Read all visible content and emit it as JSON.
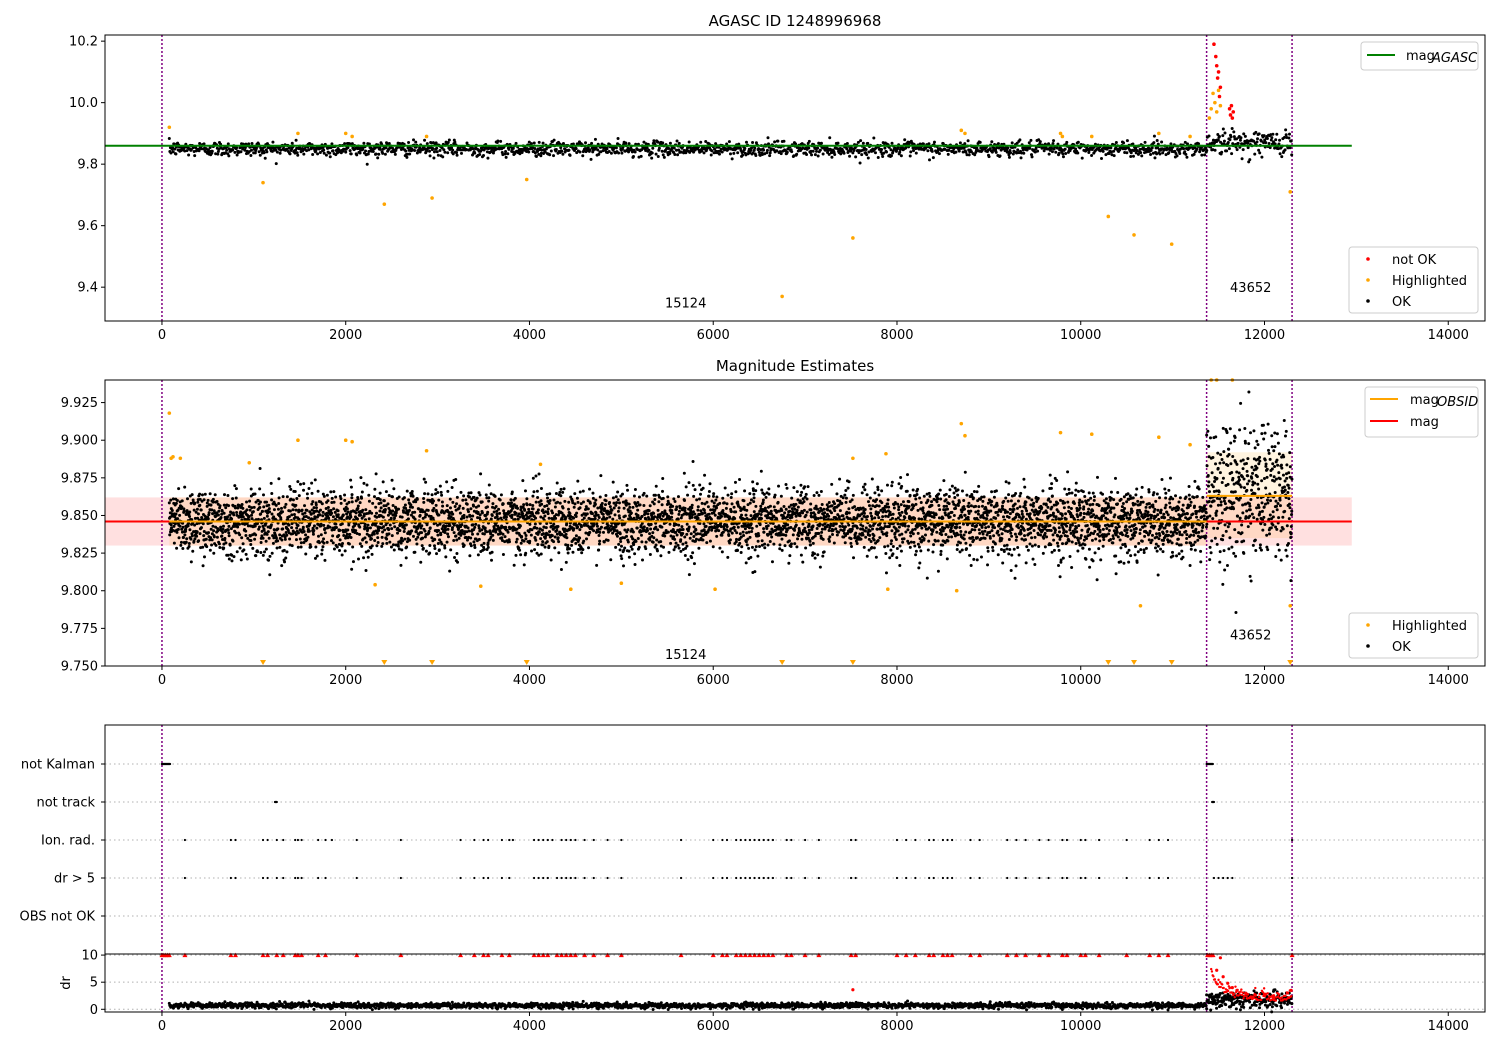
{
  "chart_data": [
    {
      "type": "scatter",
      "title": "AGASC ID 1248996968",
      "xlim": [
        -620,
        14400
      ],
      "ylim": [
        9.29,
        10.22
      ],
      "x_ticks": [
        0,
        2000,
        4000,
        6000,
        8000,
        10000,
        12000,
        14000
      ],
      "x_tick_labels": [
        "0",
        "2000",
        "4000",
        "6000",
        "8000",
        "10000",
        "12000",
        "14000"
      ],
      "y_ticks": [
        9.4,
        9.6,
        9.8,
        10.0,
        10.2
      ],
      "y_tick_labels": [
        "9.4",
        "9.6",
        "9.8",
        "10.0",
        "10.2"
      ],
      "obs_boundaries": [
        0,
        11370,
        12300
      ],
      "obs_labels": [
        {
          "text": "15124",
          "x": 5700,
          "y": 9.35
        },
        {
          "text": "43652",
          "x": 11850,
          "y": 9.4
        }
      ],
      "reference_line": {
        "name": "mag",
        "subscript": "AGASC",
        "y": 9.86,
        "x_range": [
          -620,
          12950
        ],
        "color": "#008000"
      },
      "series": [
        {
          "name": "not OK",
          "color": "#ff0000",
          "points": [
            [
              11450,
              10.19
            ],
            [
              11470,
              10.15
            ],
            [
              11480,
              10.12
            ],
            [
              11490,
              10.08
            ],
            [
              11500,
              10.1
            ],
            [
              11510,
              10.02
            ],
            [
              11520,
              10.05
            ],
            [
              11620,
              9.98
            ],
            [
              11630,
              9.96
            ],
            [
              11640,
              9.99
            ],
            [
              11650,
              9.95
            ],
            [
              11660,
              9.97
            ]
          ]
        },
        {
          "name": "Highlighted",
          "color": "#ffa500",
          "points": [
            [
              80,
              9.92
            ],
            [
              1100,
              9.74
            ],
            [
              2420,
              9.67
            ],
            [
              2940,
              9.69
            ],
            [
              3970,
              9.75
            ],
            [
              6750,
              9.37
            ],
            [
              7520,
              9.56
            ],
            [
              10300,
              9.63
            ],
            [
              10580,
              9.57
            ],
            [
              10990,
              9.54
            ],
            [
              11400,
              9.95
            ],
            [
              11420,
              9.98
            ],
            [
              11440,
              10.03
            ],
            [
              11460,
              10.0
            ],
            [
              11480,
              9.97
            ],
            [
              11500,
              10.04
            ],
            [
              11520,
              9.99
            ],
            [
              12280,
              9.71
            ],
            [
              1480,
              9.9
            ],
            [
              2000,
              9.9
            ],
            [
              2070,
              9.89
            ],
            [
              2880,
              9.89
            ],
            [
              8700,
              9.91
            ],
            [
              8740,
              9.9
            ],
            [
              9780,
              9.9
            ],
            [
              9800,
              9.89
            ],
            [
              10120,
              9.89
            ],
            [
              10850,
              9.9
            ],
            [
              11190,
              9.89
            ]
          ]
        },
        {
          "name": "OK",
          "color": "#000000"
        }
      ],
      "ok_cloud": {
        "x_range": [
          80,
          12300
        ],
        "center": 9.85,
        "spread": 0.012
      },
      "legend": {
        "top_right": [
          "mag_AGASC"
        ],
        "bottom_right": [
          "not OK",
          "Highlighted",
          "OK"
        ]
      }
    },
    {
      "type": "scatter",
      "title": "Magnitude Estimates",
      "xlim": [
        -620,
        14400
      ],
      "ylim": [
        9.75,
        9.94
      ],
      "x_ticks": [
        0,
        2000,
        4000,
        6000,
        8000,
        10000,
        12000,
        14000
      ],
      "x_tick_labels": [
        "0",
        "2000",
        "4000",
        "6000",
        "8000",
        "10000",
        "12000",
        "14000"
      ],
      "y_ticks": [
        9.75,
        9.775,
        9.8,
        9.825,
        9.85,
        9.875,
        9.9,
        9.925
      ],
      "y_tick_labels": [
        "9.750",
        "9.775",
        "9.800",
        "9.825",
        "9.850",
        "9.875",
        "9.900",
        "9.925"
      ],
      "obs_boundaries": [
        0,
        11370,
        12300
      ],
      "obs_labels": [
        {
          "text": "15124",
          "x": 5700,
          "y": 9.758
        },
        {
          "text": "43652",
          "x": 11850,
          "y": 9.771
        }
      ],
      "mag_line": {
        "name": "mag",
        "y": 9.846,
        "band": [
          9.83,
          9.862
        ],
        "x_range": [
          -620,
          12950
        ],
        "color": "#ff0000"
      },
      "obsid_lines": [
        {
          "name": "mag",
          "subscript": "OBSID",
          "y": 9.846,
          "band": [
            9.83,
            9.862
          ],
          "x_range": [
            80,
            11370
          ],
          "color": "#ffa500"
        },
        {
          "y": 9.863,
          "band": [
            9.835,
            9.892
          ],
          "x_range": [
            11370,
            12300
          ],
          "color": "#ffa500"
        }
      ],
      "series": [
        {
          "name": "Highlighted",
          "color": "#ffa500",
          "points": [
            [
              80,
              9.918
            ],
            [
              100,
              9.888
            ],
            [
              120,
              9.889
            ],
            [
              200,
              9.888
            ],
            [
              950,
              9.885
            ],
            [
              1480,
              9.9
            ],
            [
              2000,
              9.9
            ],
            [
              2070,
              9.899
            ],
            [
              2880,
              9.893
            ],
            [
              4120,
              9.884
            ],
            [
              7520,
              9.888
            ],
            [
              7880,
              9.891
            ],
            [
              8700,
              9.911
            ],
            [
              8740,
              9.903
            ],
            [
              9780,
              9.905
            ],
            [
              10120,
              9.904
            ],
            [
              10850,
              9.902
            ],
            [
              11190,
              9.897
            ],
            [
              11420,
              9.94
            ],
            [
              11480,
              9.94
            ],
            [
              11650,
              9.94
            ],
            [
              12280,
              9.79
            ],
            [
              2320,
              9.804
            ],
            [
              3470,
              9.803
            ],
            [
              4450,
              9.801
            ],
            [
              5000,
              9.805
            ],
            [
              6020,
              9.801
            ],
            [
              7900,
              9.801
            ],
            [
              8650,
              9.8
            ],
            [
              10650,
              9.79
            ]
          ]
        },
        {
          "name": "OK",
          "color": "#000000"
        }
      ],
      "clipped_markers_x": [
        1100,
        2420,
        2940,
        3970,
        6750,
        7520,
        10300,
        10580,
        10990,
        12280
      ],
      "ok_cloud": {
        "x_range": [
          80,
          12300
        ],
        "center": 9.846,
        "spread": 0.011
      },
      "legend": {
        "top_right": [
          "mag_OBSID",
          "mag"
        ],
        "bottom_right": [
          "Highlighted",
          "OK"
        ]
      }
    },
    {
      "type": "scatter",
      "title": "",
      "xlim": [
        -620,
        14400
      ],
      "x_ticks": [
        0,
        2000,
        4000,
        6000,
        8000,
        10000,
        12000,
        14000
      ],
      "x_tick_labels": [
        "0",
        "2000",
        "4000",
        "6000",
        "8000",
        "10000",
        "12000",
        "14000"
      ],
      "flag_rows": [
        "not Kalman",
        "not track",
        "Ion. rad.",
        "dr > 5",
        "OBS not OK"
      ],
      "flag_points": {
        "not Kalman": [
          [
            0,
            90
          ],
          [
            11370,
            11440
          ]
        ],
        "not track": [
          [
            1230,
            1250
          ],
          [
            11430,
            11450
          ]
        ],
        "Ion. rad.": [
          250,
          750,
          800,
          1100,
          1150,
          1250,
          1320,
          1450,
          1480,
          1520,
          1700,
          1780,
          1850,
          2120,
          2600,
          3250,
          3400,
          3500,
          3550,
          3700,
          3780,
          3820,
          4050,
          4100,
          4150,
          4200,
          4250,
          4350,
          4400,
          4450,
          4500,
          4600,
          4700,
          4850,
          5000,
          5650,
          6000,
          6100,
          6150,
          6250,
          6300,
          6350,
          6400,
          6450,
          6500,
          6550,
          6600,
          6650,
          6800,
          6850,
          7000,
          7150,
          7500,
          7550,
          8000,
          8100,
          8200,
          8350,
          8400,
          8500,
          8550,
          8600,
          8800,
          8900,
          9200,
          9300,
          9400,
          9550,
          9650,
          9800,
          9850,
          10000,
          10050,
          10200,
          10500,
          10750,
          10850,
          10950,
          12300
        ],
        "dr > 5": [
          250,
          750,
          800,
          1100,
          1150,
          1250,
          1320,
          1450,
          1480,
          1520,
          1700,
          1780,
          2120,
          2600,
          3250,
          3400,
          3500,
          3550,
          3700,
          3780,
          4050,
          4100,
          4150,
          4200,
          4300,
          4350,
          4400,
          4450,
          4500,
          4600,
          4700,
          4850,
          5000,
          5650,
          6000,
          6100,
          6150,
          6250,
          6300,
          6350,
          6400,
          6450,
          6500,
          6550,
          6600,
          6650,
          6800,
          6850,
          7000,
          7150,
          7500,
          7550,
          8000,
          8100,
          8200,
          8350,
          8400,
          8500,
          8550,
          8600,
          8800,
          8900,
          9200,
          9300,
          9400,
          9550,
          9650,
          9800,
          9850,
          10000,
          10050,
          10200,
          10500,
          10750,
          10850,
          10950,
          11450,
          11500,
          11550,
          11600,
          11650,
          12300
        ],
        "OBS not OK": []
      },
      "dr_panel": {
        "ylabel": "dr",
        "ylim": [
          -0.5,
          10.2
        ],
        "y_ticks": [
          0,
          5,
          10
        ],
        "y_tick_labels": [
          "0",
          "5",
          "10"
        ],
        "clipped_x": [
          0,
          20,
          40,
          60,
          80,
          250,
          750,
          800,
          1100,
          1150,
          1250,
          1320,
          1450,
          1480,
          1520,
          1700,
          1780,
          2120,
          2600,
          3250,
          3400,
          3500,
          3550,
          3700,
          3780,
          4050,
          4100,
          4150,
          4200,
          4300,
          4350,
          4400,
          4450,
          4500,
          4600,
          4700,
          4850,
          5000,
          5650,
          6000,
          6100,
          6150,
          6250,
          6300,
          6350,
          6400,
          6450,
          6500,
          6550,
          6600,
          6650,
          6800,
          6850,
          7000,
          7150,
          7500,
          7550,
          8000,
          8100,
          8200,
          8350,
          8400,
          8500,
          8550,
          8600,
          8800,
          8900,
          9200,
          9300,
          9400,
          9550,
          9650,
          9800,
          9850,
          10000,
          10050,
          10200,
          10500,
          10750,
          10850,
          10950,
          11380,
          11400,
          11420,
          11440,
          12300
        ],
        "highlight_points": [
          [
            7520,
            3.6
          ],
          [
            11480,
            7.2
          ],
          [
            11520,
            9.5
          ],
          [
            11550,
            6.0
          ],
          [
            11600,
            4.8
          ],
          [
            11650,
            4.0
          ],
          [
            11700,
            3.5
          ],
          [
            11800,
            2.9
          ],
          [
            11900,
            2.6
          ],
          [
            12000,
            2.8
          ],
          [
            12100,
            2.5
          ],
          [
            12250,
            3.0
          ],
          [
            12290,
            3.5
          ]
        ],
        "baseline": {
          "x_range": [
            80,
            11370
          ],
          "center": 0.7,
          "spread": 0.25
        },
        "baseline_2": {
          "x_range": [
            11370,
            12300
          ],
          "center": 1.8,
          "spread": 0.8
        }
      }
    }
  ]
}
